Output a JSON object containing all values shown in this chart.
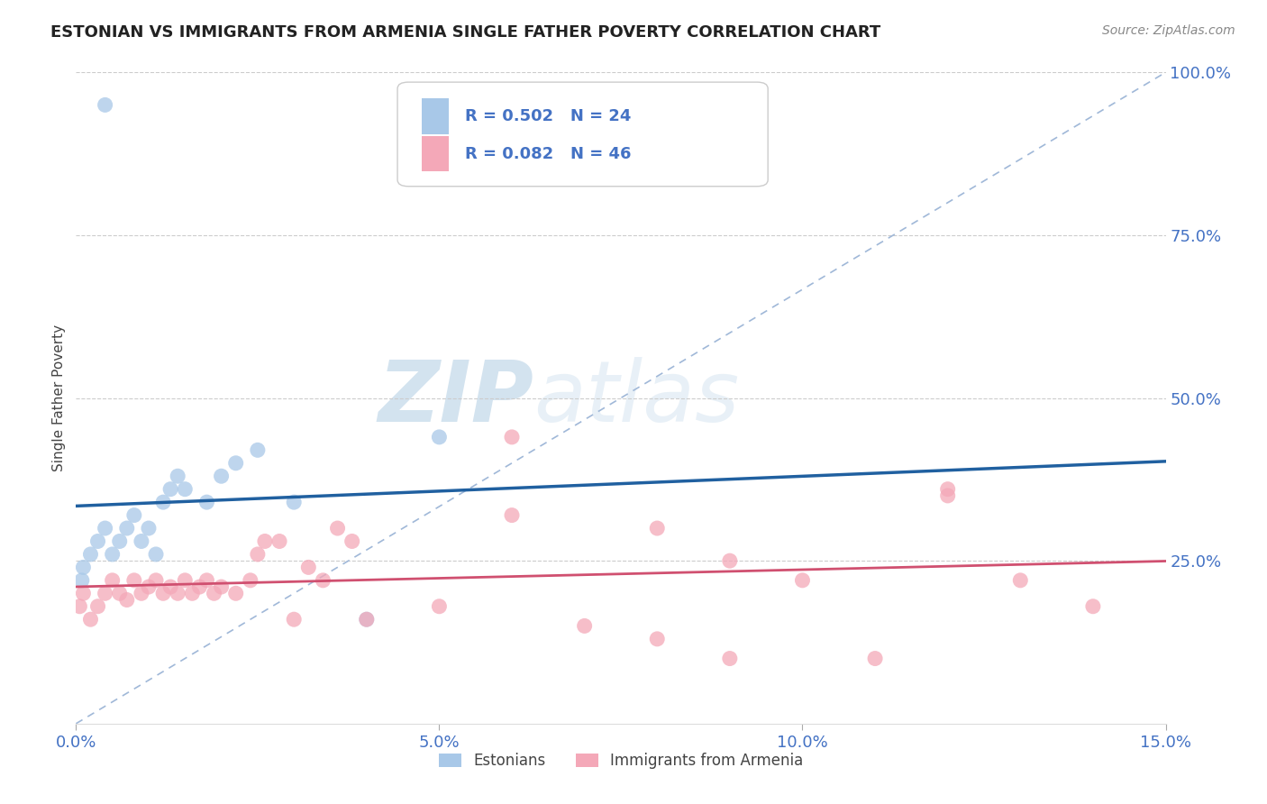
{
  "title": "ESTONIAN VS IMMIGRANTS FROM ARMENIA SINGLE FATHER POVERTY CORRELATION CHART",
  "source": "Source: ZipAtlas.com",
  "ylabel": "Single Father Poverty",
  "legend_blue_r": "R = 0.502",
  "legend_blue_n": "N = 24",
  "legend_pink_r": "R = 0.082",
  "legend_pink_n": "N = 46",
  "legend_blue_label": "Estonians",
  "legend_pink_label": "Immigrants from Armenia",
  "blue_color": "#a8c8e8",
  "pink_color": "#f4a8b8",
  "blue_line_color": "#2060a0",
  "pink_line_color": "#d05070",
  "diagonal_color": "#a0b8d8",
  "background_color": "#ffffff",
  "blue_x": [
    0.0008,
    0.001,
    0.002,
    0.003,
    0.004,
    0.005,
    0.006,
    0.007,
    0.008,
    0.009,
    0.01,
    0.011,
    0.012,
    0.013,
    0.014,
    0.015,
    0.018,
    0.02,
    0.022,
    0.025,
    0.03,
    0.04,
    0.05,
    0.004
  ],
  "blue_y": [
    0.22,
    0.24,
    0.26,
    0.28,
    0.3,
    0.26,
    0.28,
    0.3,
    0.32,
    0.28,
    0.3,
    0.26,
    0.34,
    0.36,
    0.38,
    0.36,
    0.34,
    0.38,
    0.4,
    0.42,
    0.34,
    0.16,
    0.44,
    0.95
  ],
  "pink_x": [
    0.0005,
    0.001,
    0.002,
    0.003,
    0.004,
    0.005,
    0.006,
    0.007,
    0.008,
    0.009,
    0.01,
    0.011,
    0.012,
    0.013,
    0.014,
    0.015,
    0.016,
    0.017,
    0.018,
    0.019,
    0.02,
    0.022,
    0.024,
    0.025,
    0.026,
    0.028,
    0.03,
    0.032,
    0.034,
    0.036,
    0.038,
    0.04,
    0.05,
    0.06,
    0.07,
    0.08,
    0.09,
    0.1,
    0.11,
    0.12,
    0.13,
    0.14,
    0.12,
    0.08,
    0.09,
    0.06
  ],
  "pink_y": [
    0.18,
    0.2,
    0.16,
    0.18,
    0.2,
    0.22,
    0.2,
    0.19,
    0.22,
    0.2,
    0.21,
    0.22,
    0.2,
    0.21,
    0.2,
    0.22,
    0.2,
    0.21,
    0.22,
    0.2,
    0.21,
    0.2,
    0.22,
    0.26,
    0.28,
    0.28,
    0.16,
    0.24,
    0.22,
    0.3,
    0.28,
    0.16,
    0.18,
    0.32,
    0.15,
    0.13,
    0.25,
    0.22,
    0.1,
    0.36,
    0.22,
    0.18,
    0.35,
    0.3,
    0.1,
    0.44
  ],
  "xlim": [
    0.0,
    0.15
  ],
  "ylim": [
    0.0,
    1.0
  ],
  "xticks": [
    0.0,
    0.05,
    0.1,
    0.15
  ],
  "yticks_right": [
    0.25,
    0.5,
    0.75,
    1.0
  ],
  "figsize": [
    14.06,
    8.92
  ],
  "dpi": 100
}
